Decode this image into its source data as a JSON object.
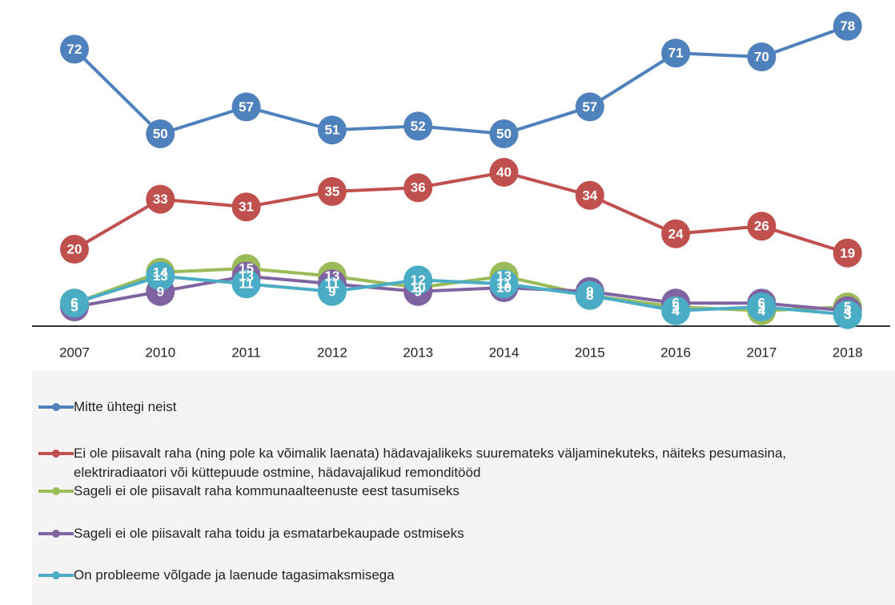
{
  "chart_data": {
    "type": "line",
    "categories": [
      "2007",
      "2010",
      "2011",
      "2012",
      "2013",
      "2014",
      "2015",
      "2016",
      "2017",
      "2018"
    ],
    "series": [
      {
        "name": "Mitte ühtegi neist",
        "color": "#4f81bd",
        "values": [
          72,
          50,
          57,
          51,
          52,
          50,
          57,
          71,
          70,
          78
        ]
      },
      {
        "name": "Ei ole piisavalt raha (ning pole ka võimalik laenata) hädavajalikeks suuremateks väljaminekuteks, näiteks pesumasina, elektriradiaatori või küttepuude ostmine, hädavajalikud remonditööd",
        "color": "#c0504d",
        "values": [
          20,
          33,
          31,
          35,
          36,
          40,
          34,
          24,
          26,
          19
        ]
      },
      {
        "name": "Sageli ei ole piisavalt raha kommunaalteenuste eest tasumiseks",
        "color": "#9bbb59",
        "values": [
          6,
          14,
          15,
          13,
          10,
          13,
          8,
          5,
          4,
          5
        ]
      },
      {
        "name": "Sageli ei ole piisavalt raha toidu ja esmatarbekaupade ostmiseks",
        "color": "#8064a2",
        "values": [
          5,
          9,
          13,
          11,
          9,
          10,
          9,
          6,
          6,
          4
        ]
      },
      {
        "name": "On probleeme võlgade ja laenude tagasimaksmisega",
        "color": "#4bacc6",
        "values": [
          6,
          13,
          11,
          9,
          12,
          11,
          8,
          4,
          5,
          3
        ]
      }
    ]
  }
}
